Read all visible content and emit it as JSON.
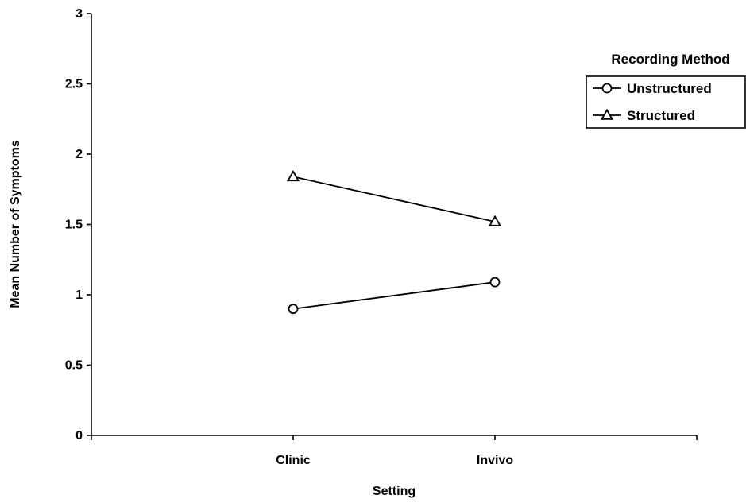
{
  "chart_data": {
    "type": "line",
    "title": "",
    "xlabel": "Setting",
    "ylabel": "Mean Number of Symptoms",
    "categories": [
      "Clinic",
      "Invivo"
    ],
    "ylim": [
      0,
      3
    ],
    "yticks": [
      "0",
      "0.5",
      "1",
      "1.5",
      "2",
      "2.5",
      "3"
    ],
    "grid": false,
    "legend": {
      "title": "Recording Method",
      "position": "right"
    },
    "series": [
      {
        "name": "Unstructured",
        "marker": "circle",
        "values": [
          0.9,
          1.09
        ]
      },
      {
        "name": "Structured",
        "marker": "triangle",
        "values": [
          1.84,
          1.52
        ]
      }
    ],
    "colors": {
      "line": "#000000",
      "background": "#ffffff"
    }
  }
}
